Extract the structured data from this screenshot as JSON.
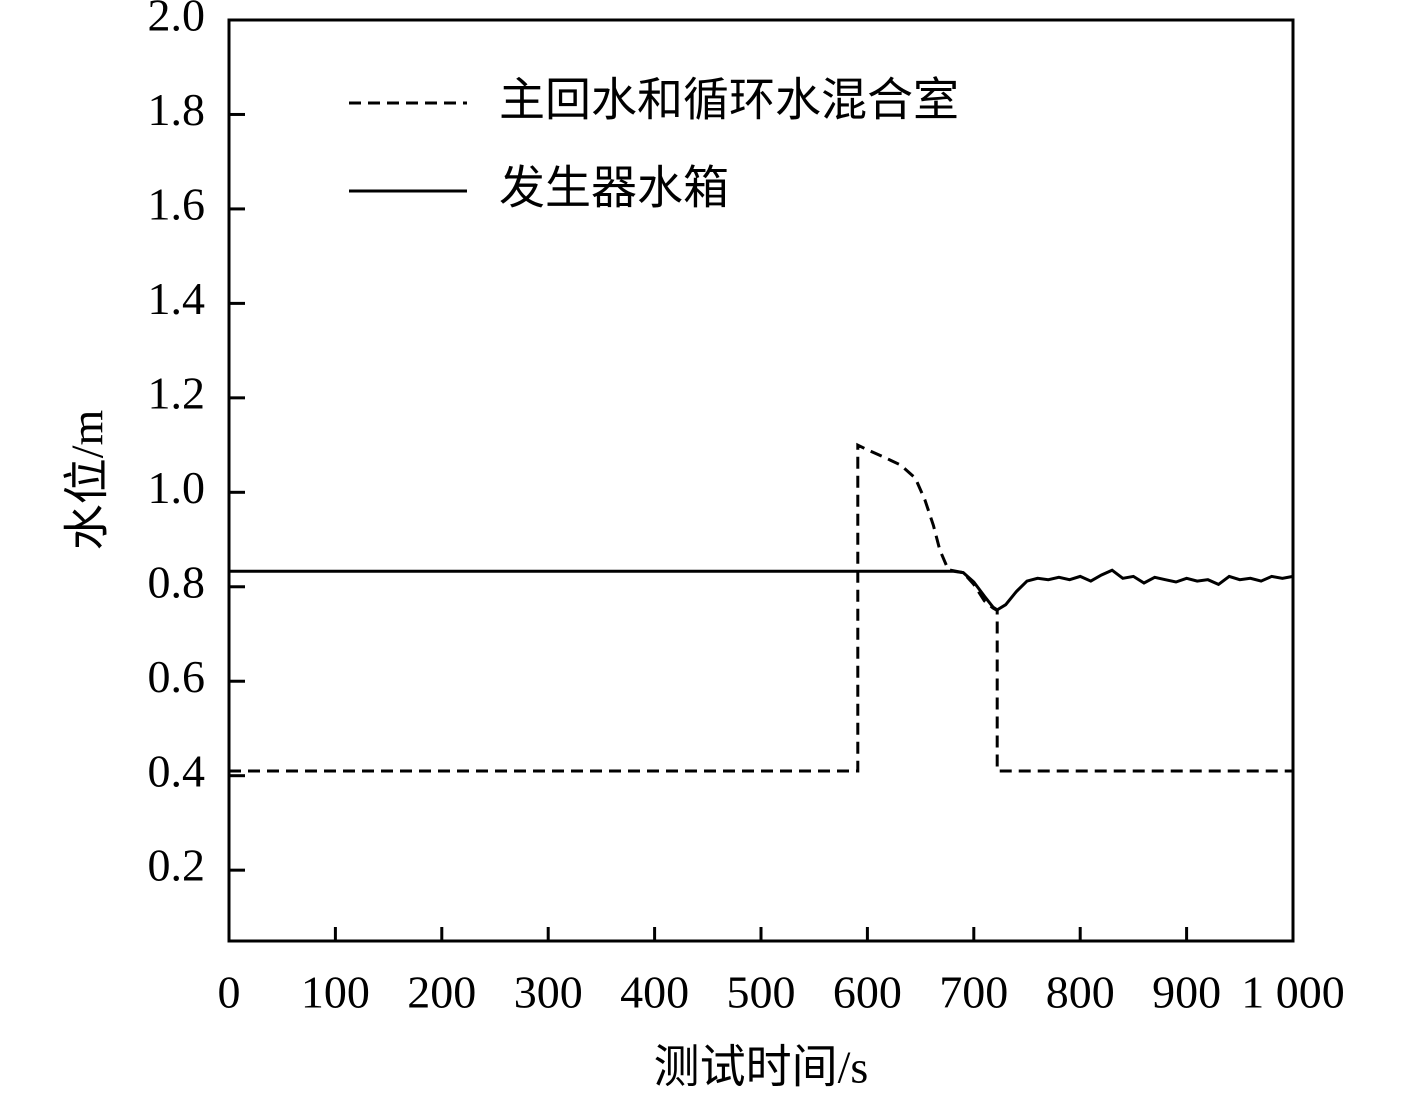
{
  "chart_data": {
    "type": "line",
    "xlabel": "测试时间/s",
    "ylabel": "水位/m",
    "xlim": [
      0,
      1000
    ],
    "ylim": [
      0.05,
      2.0
    ],
    "xticks": [
      0,
      100,
      200,
      300,
      400,
      500,
      600,
      700,
      800,
      900,
      {
        "value": 1000,
        "label": "1 000"
      }
    ],
    "yticks": [
      0.2,
      0.4,
      0.6,
      0.8,
      {
        "value": 1,
        "label": "1.0"
      },
      1.2,
      1.4,
      1.6,
      1.8,
      {
        "value": 2,
        "label": "2.0"
      }
    ],
    "legend": "upper left",
    "series": [
      {
        "name": "主回水和循环水混合室",
        "color": "#000000",
        "dash": true,
        "x": [
          0,
          591,
          591,
          600,
          615,
          631,
          645,
          654,
          662,
          668,
          676,
          690,
          700,
          710,
          718,
          722,
          722,
          1000
        ],
        "values": [
          0.41,
          0.41,
          1.1,
          1.09,
          1.075,
          1.058,
          1.03,
          0.984,
          0.93,
          0.878,
          0.836,
          0.83,
          0.805,
          0.77,
          0.755,
          0.75,
          0.41,
          0.41
        ]
      },
      {
        "name": "发生器水箱",
        "color": "#000000",
        "dash": false,
        "x": [
          0,
          680,
          690,
          700,
          710,
          718,
          722,
          730,
          740,
          750,
          760,
          770,
          780,
          790,
          800,
          810,
          820,
          830,
          840,
          850,
          860,
          870,
          880,
          890,
          900,
          910,
          920,
          930,
          940,
          950,
          960,
          970,
          980,
          990,
          1000
        ],
        "values": [
          0.833,
          0.833,
          0.83,
          0.81,
          0.78,
          0.757,
          0.751,
          0.762,
          0.79,
          0.812,
          0.818,
          0.815,
          0.82,
          0.815,
          0.822,
          0.812,
          0.825,
          0.835,
          0.818,
          0.822,
          0.808,
          0.82,
          0.815,
          0.81,
          0.818,
          0.812,
          0.815,
          0.805,
          0.822,
          0.815,
          0.818,
          0.812,
          0.822,
          0.818,
          0.822
        ]
      }
    ]
  }
}
